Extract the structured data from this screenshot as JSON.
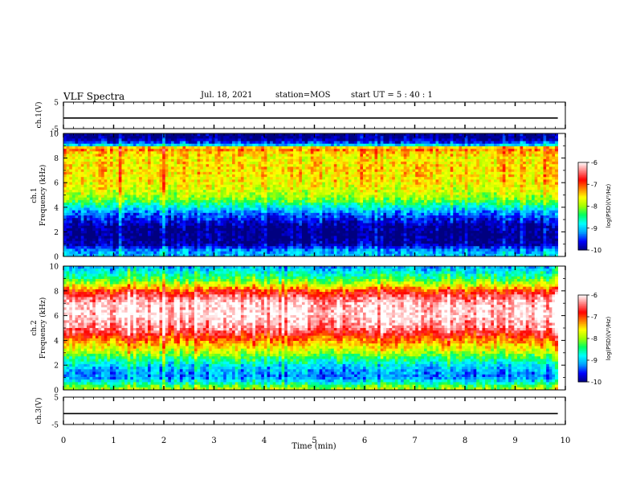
{
  "header": {
    "title": "VLF Spectra",
    "date": "Jul. 18, 2021",
    "station": "station=MOS",
    "start": "start UT =  5 : 40 : 1"
  },
  "colors": {
    "colormap": [
      "#000080",
      "#0000ff",
      "#00a0ff",
      "#00ffff",
      "#00ff60",
      "#a0ff00",
      "#ffff00",
      "#ff8000",
      "#ff0000",
      "#ff8080",
      "#ffffff"
    ]
  },
  "chart_data": [
    {
      "type": "line",
      "panel": "ch1-voltage",
      "ylabel": "ch.1(V)",
      "ylim": [
        -5,
        5
      ],
      "y_ticks": [
        "5",
        "-5"
      ],
      "x": [
        0,
        9.85
      ],
      "series": [
        {
          "values": [
            -1,
            -1
          ]
        }
      ]
    },
    {
      "type": "heatmap",
      "panel": "ch1-spectrogram",
      "ylabel_top": "ch.1",
      "ylabel": "Frequency (kHz)",
      "ylim": [
        0,
        10
      ],
      "y_ticks": [
        "0",
        "2",
        "4",
        "6",
        "8",
        "10"
      ],
      "x_range_min": [
        0,
        9.85
      ],
      "colorbar": {
        "label": "log(PSD)(V²/Hz)",
        "range": [
          -10,
          -6
        ],
        "ticks": [
          "-6",
          "-7",
          "-8",
          "-9",
          "-10"
        ]
      },
      "profile_freq_khz": [
        0,
        0.5,
        1,
        1.5,
        2,
        2.5,
        3,
        3.5,
        4,
        4.5,
        5,
        6,
        7,
        8,
        8.5,
        8.8,
        9,
        9.3,
        9.6,
        10
      ],
      "profile_log_psd": [
        -9.0,
        -9.2,
        -9.9,
        -10,
        -10,
        -9.9,
        -9.6,
        -9.3,
        -8.8,
        -8.2,
        -7.9,
        -7.6,
        -7.5,
        -7.6,
        -7.4,
        -7.0,
        -8.8,
        -9.6,
        -10,
        -10
      ]
    },
    {
      "type": "heatmap",
      "panel": "ch2-spectrogram",
      "ylabel_top": "ch.2",
      "ylabel": "Frequency (kHz)",
      "ylim": [
        0,
        10
      ],
      "y_ticks": [
        "0",
        "2",
        "4",
        "6",
        "8",
        "10"
      ],
      "x_range_min": [
        0,
        9.85
      ],
      "colorbar": {
        "label": "log(PSD)(V²/Hz)",
        "range": [
          -10,
          -6
        ],
        "ticks": [
          "-6",
          "-7",
          "-8",
          "-9",
          "-10"
        ]
      },
      "profile_freq_khz": [
        0,
        0.5,
        1,
        1.5,
        2,
        2.5,
        3,
        3.5,
        4,
        4.5,
        5,
        6,
        7,
        7.5,
        8,
        8.5,
        9,
        9.5,
        10
      ],
      "profile_log_psd": [
        -7.8,
        -8.6,
        -9.3,
        -9.2,
        -8.9,
        -8.5,
        -8.0,
        -7.6,
        -7.2,
        -6.8,
        -6.4,
        -6.1,
        -6.2,
        -6.5,
        -7.0,
        -7.8,
        -8.4,
        -8.8,
        -9.2
      ]
    },
    {
      "type": "line",
      "panel": "ch3-voltage",
      "ylabel": "ch.3(V)",
      "ylim": [
        -5,
        5
      ],
      "y_ticks": [
        "5",
        "-5"
      ],
      "xlabel": "Time (min)",
      "xlim": [
        0,
        10
      ],
      "x_ticks": [
        "0",
        "1",
        "2",
        "3",
        "4",
        "5",
        "6",
        "7",
        "8",
        "9",
        "10"
      ],
      "x": [
        0,
        9.85
      ],
      "series": [
        {
          "values": [
            -1,
            -1
          ]
        }
      ]
    }
  ]
}
